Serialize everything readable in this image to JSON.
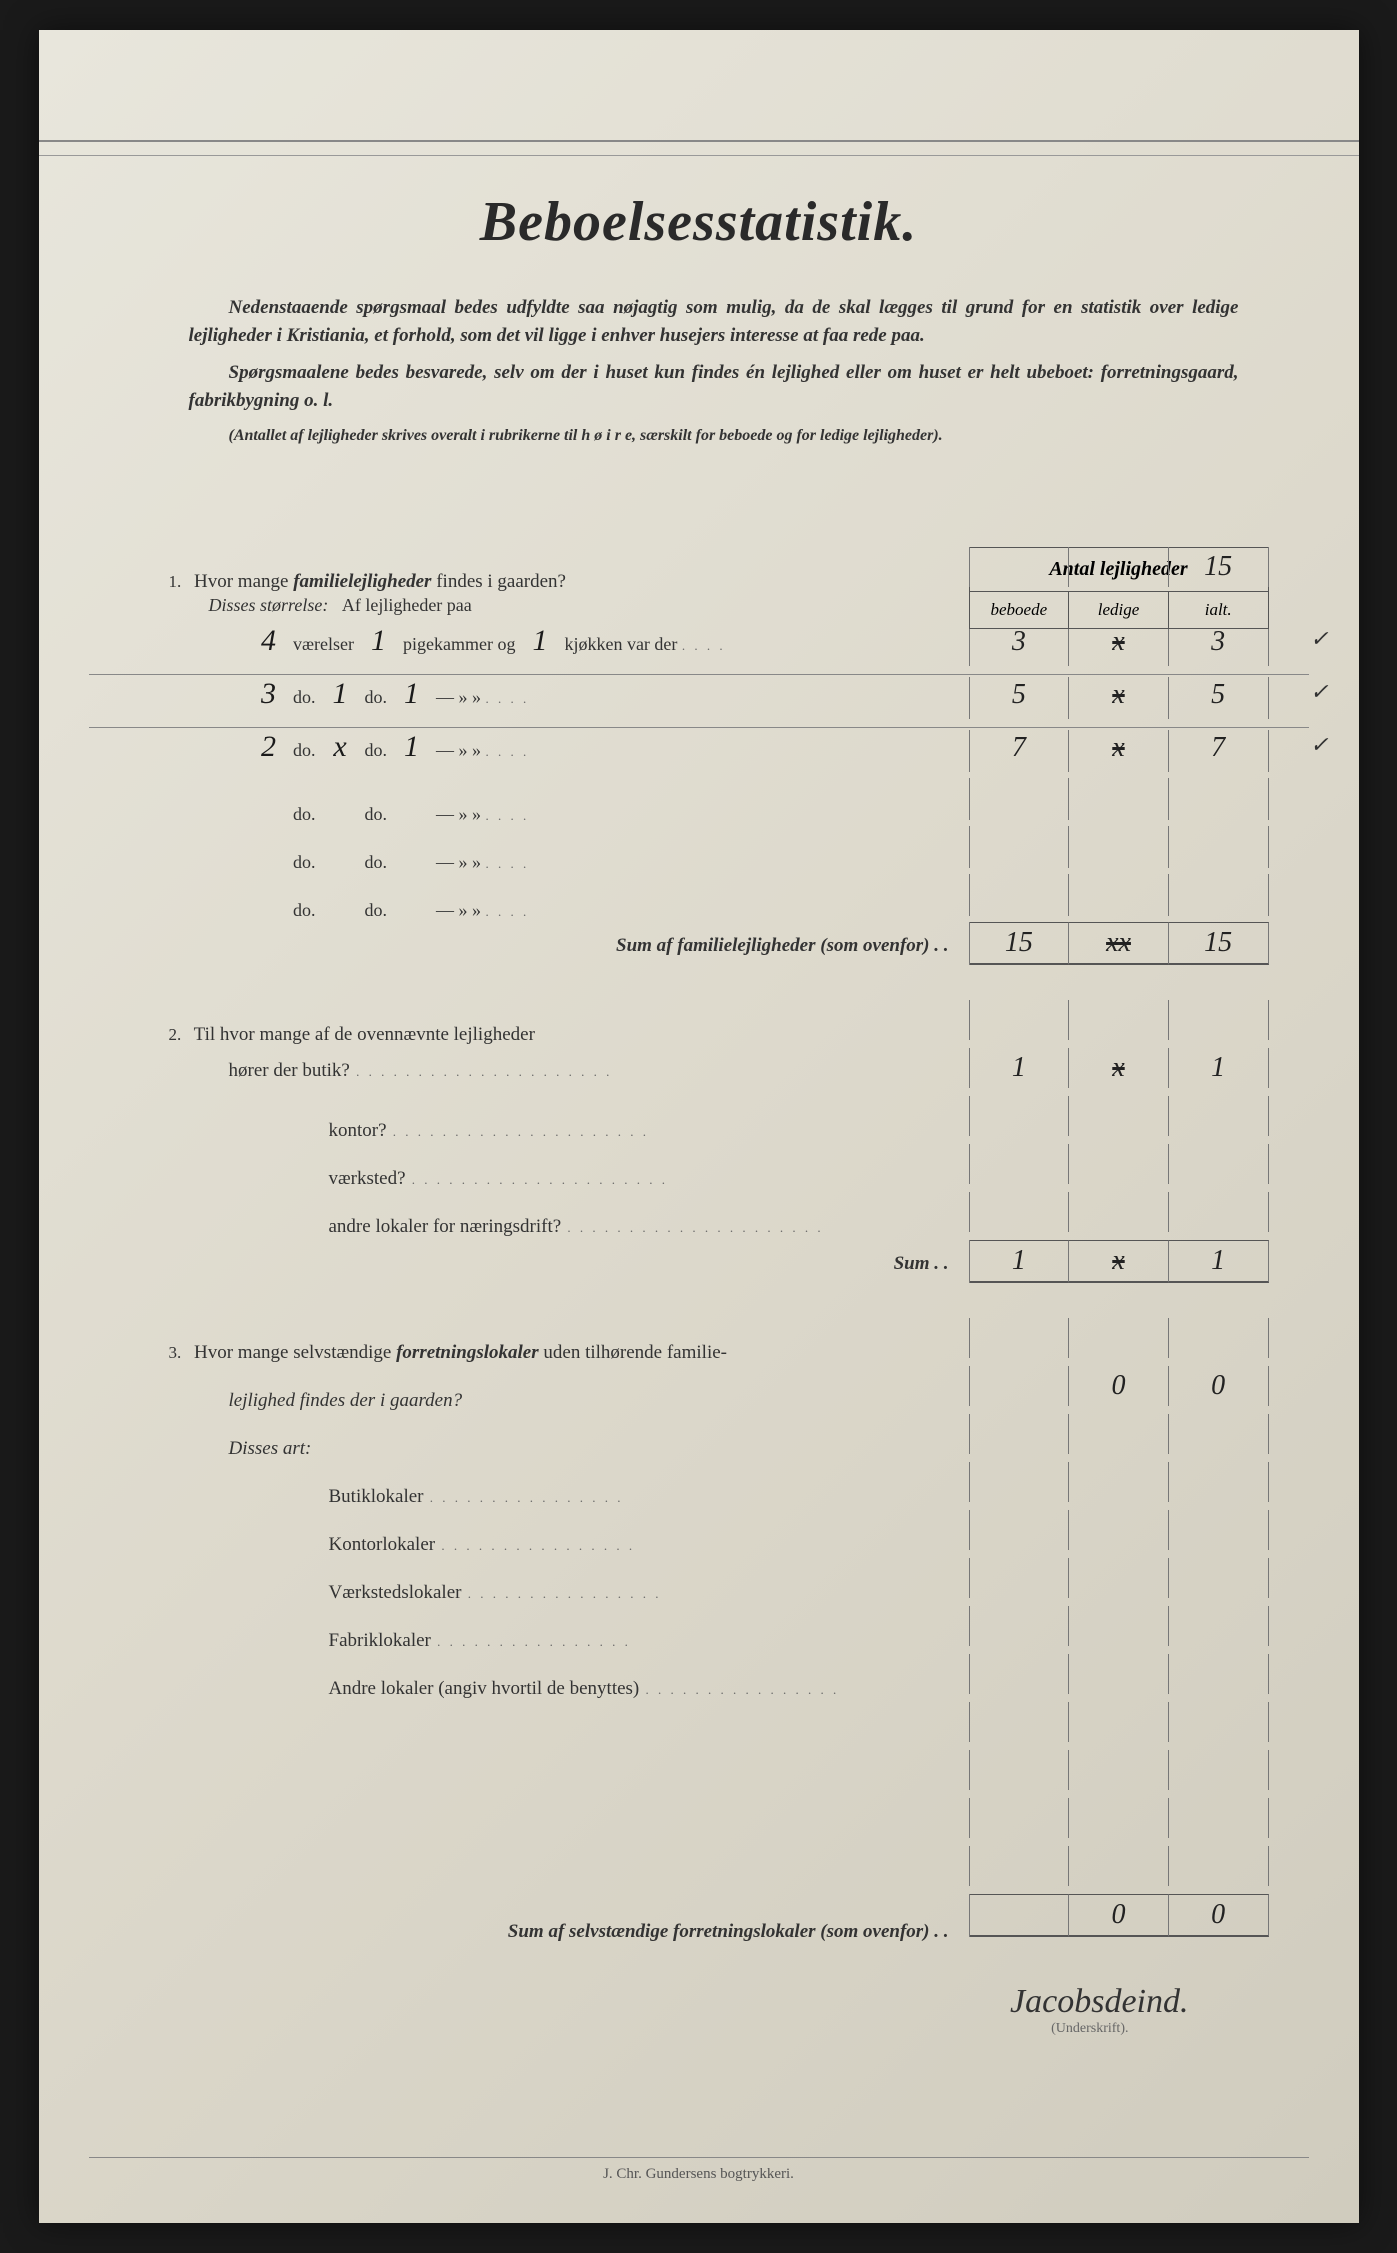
{
  "title": "Beboelsesstatistik.",
  "intro": [
    "Nedenstaaende spørgsmaal bedes udfyldte saa nøjagtig som mulig, da de skal lægges til grund for en statistik over ledige lejligheder i Kristiania, et forhold, som det vil ligge i enhver husejers interesse at faa rede paa.",
    "Spørgsmaalene bedes besvarede, selv om der i huset kun findes én lejlighed eller om huset er helt ubeboet: forretningsgaard, fabrikbygning o. l.",
    "(Antallet af lejligheder skrives overalt i rubrikerne til h ø i r e, særskilt for beboede og for ledige lejligheder)."
  ],
  "col_header": {
    "title": "Antal lejligheder",
    "sub": [
      "beboede",
      "ledige",
      "ialt."
    ]
  },
  "q1": {
    "num": "1.",
    "text_a": "Hvor mange ",
    "text_b": "familielejligheder",
    "text_c": " findes i gaarden?",
    "ialt_total": "15",
    "disses": "Disses størrelse:",
    "af": "Af lejligheder paa",
    "room_rows": [
      {
        "v": "4",
        "vw": "værelser",
        "p": "1",
        "pw": "pigekammer og",
        "k": "1",
        "kw": "kjøkken var der",
        "beboede": "3",
        "ledige": "x",
        "ialt": "3",
        "tick": "✓"
      },
      {
        "v": "3",
        "vw": "do.",
        "p": "1",
        "pw": "do.",
        "k": "1",
        "kw": "—   »   »",
        "beboede": "5",
        "ledige": "x",
        "ialt": "5",
        "tick": "✓"
      },
      {
        "v": "2",
        "vw": "do.",
        "p": "x",
        "pw": "do.",
        "k": "1",
        "kw": "—   »   »",
        "beboede": "7",
        "ledige": "x",
        "ialt": "7",
        "tick": "✓"
      },
      {
        "v": "",
        "vw": "do.",
        "p": "",
        "pw": "do.",
        "k": "",
        "kw": "—   »   »",
        "beboede": "",
        "ledige": "",
        "ialt": "",
        "tick": ""
      },
      {
        "v": "",
        "vw": "do.",
        "p": "",
        "pw": "do.",
        "k": "",
        "kw": "—   »   »",
        "beboede": "",
        "ledige": "",
        "ialt": "",
        "tick": ""
      },
      {
        "v": "",
        "vw": "do.",
        "p": "",
        "pw": "do.",
        "k": "",
        "kw": "—   »   »",
        "beboede": "",
        "ledige": "",
        "ialt": "",
        "tick": ""
      }
    ],
    "sum_label": "Sum af familielejligheder (som ovenfor) . .",
    "sum": {
      "beboede": "15",
      "ledige": "xx",
      "ialt": "15"
    }
  },
  "q2": {
    "num": "2.",
    "text": "Til hvor mange af de ovennævnte lejligheder",
    "rows": [
      {
        "label": "hører der butik?",
        "beboede": "1",
        "ledige": "x",
        "ialt": "1"
      },
      {
        "label": "kontor?",
        "beboede": "",
        "ledige": "",
        "ialt": ""
      },
      {
        "label": "værksted?",
        "beboede": "",
        "ledige": "",
        "ialt": ""
      },
      {
        "label": "andre lokaler for næringsdrift?",
        "beboede": "",
        "ledige": "",
        "ialt": ""
      }
    ],
    "sum_label": "Sum . .",
    "sum": {
      "beboede": "1",
      "ledige": "x",
      "ialt": "1",
      "tick": "✓"
    }
  },
  "q3": {
    "num": "3.",
    "text_a": "Hvor mange selvstændige ",
    "text_b": "forretningslokaler",
    "text_c": " uden tilhørende familie-",
    "text_d": "lejlighed findes der i gaarden?",
    "top": {
      "beboede": "",
      "ledige": "0",
      "ialt": "0"
    },
    "disses": "Disses art:",
    "rows": [
      {
        "label": "Butiklokaler",
        "beboede": "",
        "ledige": "",
        "ialt": ""
      },
      {
        "label": "Kontorlokaler",
        "beboede": "",
        "ledige": "",
        "ialt": ""
      },
      {
        "label": "Værkstedslokaler",
        "beboede": "",
        "ledige": "",
        "ialt": ""
      },
      {
        "label": "Fabriklokaler",
        "beboede": "",
        "ledige": "",
        "ialt": ""
      },
      {
        "label": "Andre lokaler (angiv hvortil de benyttes)",
        "beboede": "",
        "ledige": "",
        "ialt": ""
      }
    ],
    "blank_rows": 4,
    "sum_label": "Sum af selvstændige forretningslokaler (som ovenfor) . .",
    "sum": {
      "beboede": "",
      "ledige": "0",
      "ialt": "0"
    }
  },
  "signature": "Jacobsdeind.",
  "sig_label": "(Underskrift).",
  "footer": "J. Chr. Gundersens bogtrykkeri.",
  "colors": {
    "page_bg": "#e0dcd0",
    "text": "#2a2a2a",
    "rule": "#777777",
    "handwriting": "#1a1a1a"
  },
  "typography": {
    "title_fontsize_pt": 42,
    "body_fontsize_pt": 14,
    "handwriting_fontsize_pt": 22
  }
}
